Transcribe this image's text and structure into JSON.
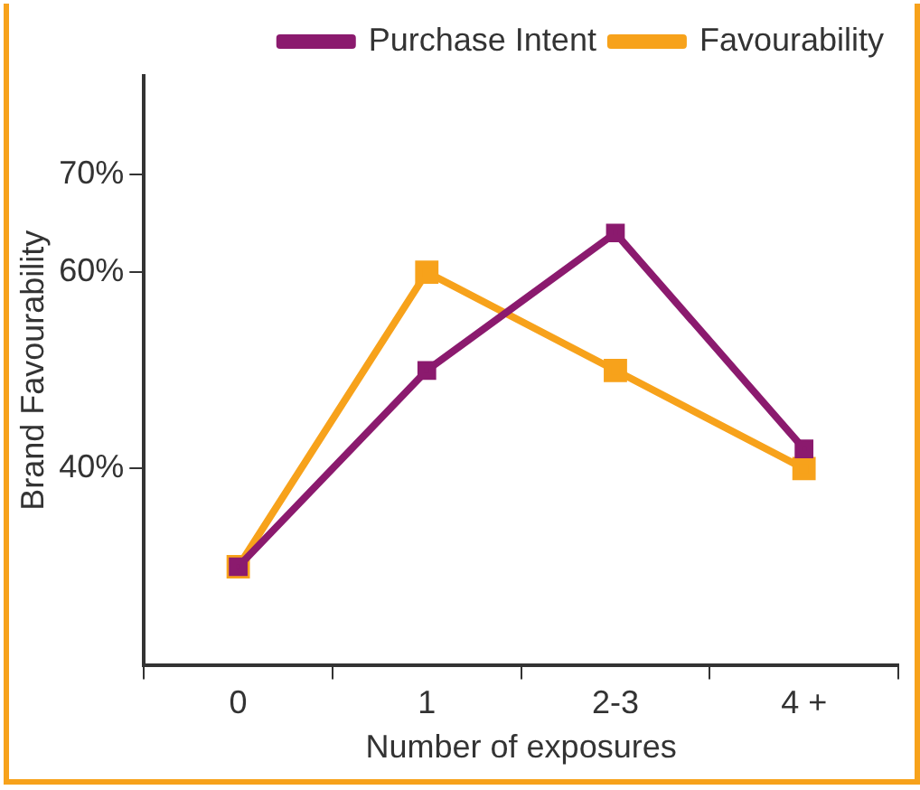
{
  "chart_data": {
    "type": "line",
    "xlabel": "Number of exposures",
    "ylabel": "Brand Favourability",
    "categories": [
      "0",
      "1",
      "2-3",
      "4 +"
    ],
    "series": [
      {
        "name": "Purchase Intent",
        "color": "#8b1a6e",
        "values": [
          30,
          50,
          64,
          42
        ]
      },
      {
        "name": "Favourability",
        "color": "#f7a21b",
        "values": [
          30,
          60,
          50,
          40
        ]
      }
    ],
    "ylim": [
      20,
      80
    ],
    "yticks": [
      {
        "value": 40,
        "label": "40%"
      },
      {
        "value": 60,
        "label": "60%"
      },
      {
        "value": 70,
        "label": "70%"
      }
    ],
    "grid": false,
    "legend": "top right",
    "marker": "square",
    "line_style": "solid"
  }
}
